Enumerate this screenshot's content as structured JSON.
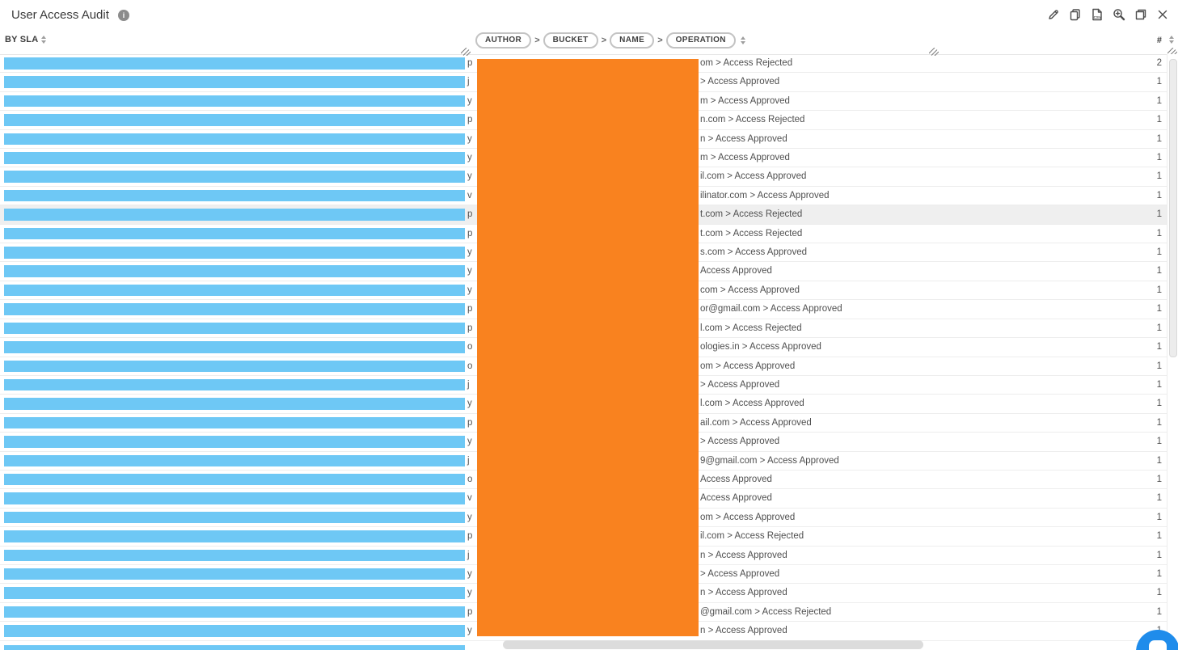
{
  "title_bar": {
    "title": "User Access Audit",
    "info_icon": "info-circle-icon",
    "actions": [
      {
        "name": "edit",
        "icon": "pencil-icon"
      },
      {
        "name": "copy",
        "icon": "copy-icon"
      },
      {
        "name": "export-csv",
        "icon": "file-csv-icon"
      },
      {
        "name": "zoom-in",
        "icon": "magnifier-plus-icon"
      },
      {
        "name": "maximize",
        "icon": "window-restore-icon"
      },
      {
        "name": "close",
        "icon": "close-icon"
      }
    ]
  },
  "table": {
    "left_column_header": "BY SLA",
    "breadcrumb": [
      "AUTHOR",
      "BUCKET",
      "NAME",
      "OPERATION"
    ],
    "breadcrumb_separator": ">",
    "count_column_header": "#",
    "rows": [
      {
        "lead": "p",
        "text": "om > Access Rejected",
        "count": "2",
        "highlight": false
      },
      {
        "lead": "j",
        "text": "> Access Approved",
        "count": "1",
        "highlight": false
      },
      {
        "lead": "y",
        "text": "m > Access Approved",
        "count": "1",
        "highlight": false
      },
      {
        "lead": "p",
        "text": "n.com > Access Rejected",
        "count": "1",
        "highlight": false
      },
      {
        "lead": "y",
        "text": "n > Access Approved",
        "count": "1",
        "highlight": false
      },
      {
        "lead": "y",
        "text": "m > Access Approved",
        "count": "1",
        "highlight": false
      },
      {
        "lead": "y",
        "text": "il.com > Access Approved",
        "count": "1",
        "highlight": false
      },
      {
        "lead": "v",
        "text": "ilinator.com > Access Approved",
        "count": "1",
        "highlight": false
      },
      {
        "lead": "p",
        "text": "t.com > Access Rejected",
        "count": "1",
        "highlight": true
      },
      {
        "lead": "p",
        "text": "t.com > Access Rejected",
        "count": "1",
        "highlight": false
      },
      {
        "lead": "y",
        "text": "s.com > Access Approved",
        "count": "1",
        "highlight": false
      },
      {
        "lead": "y",
        "text": "Access Approved",
        "count": "1",
        "highlight": false
      },
      {
        "lead": "y",
        "text": "com > Access Approved",
        "count": "1",
        "highlight": false
      },
      {
        "lead": "p",
        "text": "or@gmail.com > Access Approved",
        "count": "1",
        "highlight": false
      },
      {
        "lead": "p",
        "text": "l.com > Access Rejected",
        "count": "1",
        "highlight": false
      },
      {
        "lead": "o",
        "text": "ologies.in > Access Approved",
        "count": "1",
        "highlight": false
      },
      {
        "lead": "o",
        "text": "om > Access Approved",
        "count": "1",
        "highlight": false
      },
      {
        "lead": "j",
        "text": "> Access Approved",
        "count": "1",
        "highlight": false
      },
      {
        "lead": "y",
        "text": "l.com > Access Approved",
        "count": "1",
        "highlight": false
      },
      {
        "lead": "p",
        "text": "ail.com > Access Approved",
        "count": "1",
        "highlight": false
      },
      {
        "lead": "y",
        "text": "> Access Approved",
        "count": "1",
        "highlight": false
      },
      {
        "lead": "j",
        "text": "9@gmail.com > Access Approved",
        "count": "1",
        "highlight": false
      },
      {
        "lead": "o",
        "text": "Access Approved",
        "count": "1",
        "highlight": false
      },
      {
        "lead": "v",
        "text": "Access Approved",
        "count": "1",
        "highlight": false
      },
      {
        "lead": "y",
        "text": "om > Access Approved",
        "count": "1",
        "highlight": false
      },
      {
        "lead": "p",
        "text": "il.com > Access Rejected",
        "count": "1",
        "highlight": false
      },
      {
        "lead": "j",
        "text": "n > Access Approved",
        "count": "1",
        "highlight": false
      },
      {
        "lead": "y",
        "text": "> Access Approved",
        "count": "1",
        "highlight": false
      },
      {
        "lead": "y",
        "text": "n > Access Approved",
        "count": "1",
        "highlight": false
      },
      {
        "lead": "p",
        "text": "@gmail.com > Access Rejected",
        "count": "1",
        "highlight": false
      },
      {
        "lead": "y",
        "text": "n > Access Approved",
        "count": "1",
        "highlight": false
      }
    ]
  },
  "colors": {
    "bar_blue": "#6EC8F5",
    "redaction_orange": "#F9821F",
    "row_highlight": "#EFEFEF",
    "row_border": "#EDEDED",
    "chat_button_blue": "#1F8CEB",
    "text_gray": "#4F4F4F"
  }
}
